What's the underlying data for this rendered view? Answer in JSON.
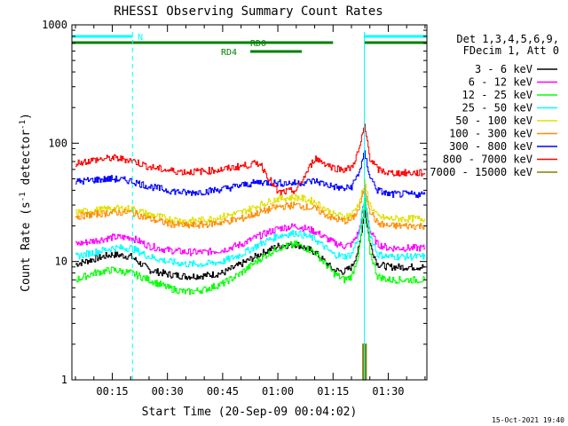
{
  "chart_data": {
    "type": "line",
    "title": "RHESSI Observing Summary Count Rates",
    "xlabel": "Start Time (20-Sep-09 00:04:02)",
    "ylabel": {
      "base": "Count Rate (s",
      "sup1": "-1",
      "mid": " detector",
      "sup2": "-1",
      "end": ")"
    },
    "x_tick_labels": [
      "00:15",
      "00:30",
      "00:45",
      "01:00",
      "01:15",
      "01:30"
    ],
    "x_tick_minutes": [
      15,
      30,
      45,
      60,
      75,
      90
    ],
    "xlim_minutes": [
      4.03,
      100.5
    ],
    "y_scale": "log",
    "ylim": [
      1,
      1000
    ],
    "y_tick_labels": [
      "1",
      "10",
      "100",
      "1000"
    ],
    "y_tick_values": [
      1,
      10,
      100,
      1000
    ],
    "grid": false,
    "legend_placement": "right",
    "detector_info": [
      "Det 1,3,4,5,6,9,",
      "FDecim 1, Att 0"
    ],
    "legend_entries": [
      {
        "label": "3 - 6 keV",
        "color": "#000000"
      },
      {
        "label": "6 - 12 keV",
        "color": "#ff00ff"
      },
      {
        "label": "12 - 25 keV",
        "color": "#00ff00"
      },
      {
        "label": "25 - 50 keV",
        "color": "#00ffff"
      },
      {
        "label": "50 - 100 keV",
        "color": "#e0e000"
      },
      {
        "label": "100 - 300 keV",
        "color": "#ff8c00"
      },
      {
        "label": "300 - 800 keV",
        "color": "#0000ff"
      },
      {
        "label": "800 - 7000 keV",
        "color": "#ff0000"
      },
      {
        "label": "7000 - 15000 keV",
        "color": "#808000"
      }
    ],
    "flags": [
      {
        "label": "N",
        "color": "#00ffff",
        "segments": [
          [
            4.03,
            20.5
          ],
          [
            83.5,
            100.5
          ]
        ]
      },
      {
        "label": "RD0",
        "color": "#008000",
        "segments": [
          [
            4.03,
            75.0
          ],
          [
            83.5,
            100.5
          ]
        ]
      },
      {
        "label": "RD4",
        "color": "#008000",
        "segments": [
          [
            52.5,
            66.5
          ]
        ]
      }
    ],
    "night_boundaries_minutes": [
      4.03,
      20.5,
      83.5,
      100.5
    ],
    "series": [
      {
        "color": "#000000",
        "x": [
          5,
          10,
          15,
          20,
          25,
          30,
          35,
          40,
          45,
          50,
          55,
          60,
          65,
          70,
          75,
          78,
          80,
          82,
          83.5,
          85,
          87,
          90,
          95,
          100
        ],
        "values": [
          9.5,
          10.5,
          11.5,
          11,
          8.5,
          7.8,
          7.5,
          7.6,
          8,
          9.5,
          11.5,
          13.5,
          14,
          12,
          8.5,
          8.2,
          9,
          13,
          27,
          14,
          9.5,
          9,
          9,
          9
        ]
      },
      {
        "color": "#ff00ff",
        "x": [
          5,
          10,
          15,
          20,
          25,
          30,
          35,
          40,
          45,
          50,
          55,
          60,
          65,
          70,
          75,
          78,
          80,
          82,
          83.5,
          85,
          87,
          90,
          95,
          100
        ],
        "values": [
          14,
          15,
          16,
          16,
          13.5,
          12.5,
          12,
          12,
          12.5,
          14,
          16.5,
          19,
          20,
          18,
          14.5,
          13.5,
          14,
          18,
          34,
          18,
          14,
          13,
          13,
          13
        ]
      },
      {
        "color": "#00ff00",
        "x": [
          5,
          10,
          15,
          20,
          25,
          30,
          35,
          40,
          45,
          50,
          55,
          60,
          65,
          70,
          75,
          78,
          80,
          82,
          83.5,
          85,
          87,
          90,
          95,
          100
        ],
        "values": [
          7,
          8,
          8.5,
          8,
          7,
          6,
          5.5,
          5.8,
          6.5,
          8,
          10.5,
          13,
          14,
          12,
          8,
          7,
          7.5,
          12,
          32,
          12,
          7.5,
          7,
          7,
          7
        ]
      },
      {
        "color": "#00ffff",
        "x": [
          5,
          10,
          15,
          20,
          25,
          30,
          35,
          40,
          45,
          50,
          55,
          60,
          65,
          70,
          75,
          78,
          80,
          82,
          83.5,
          85,
          87,
          90,
          95,
          100
        ],
        "values": [
          11,
          12,
          13,
          13,
          11,
          10,
          9.5,
          9.5,
          10,
          11.5,
          14,
          16.5,
          17.5,
          15.5,
          11.5,
          11,
          11.5,
          17,
          37,
          17,
          11.5,
          11,
          11,
          11
        ]
      },
      {
        "color": "#e0e000",
        "x": [
          5,
          10,
          15,
          20,
          25,
          30,
          35,
          40,
          45,
          50,
          55,
          60,
          65,
          70,
          75,
          78,
          80,
          82,
          83.5,
          85,
          87,
          90,
          95,
          100
        ],
        "values": [
          26,
          27,
          28,
          28,
          25,
          23,
          22,
          22.5,
          24,
          26,
          30,
          34,
          35,
          32,
          25,
          24,
          25,
          31,
          46,
          30,
          24,
          23,
          23,
          23
        ]
      },
      {
        "color": "#ff8c00",
        "x": [
          5,
          10,
          15,
          20,
          25,
          30,
          35,
          40,
          45,
          50,
          55,
          60,
          65,
          70,
          75,
          78,
          80,
          82,
          83.5,
          85,
          87,
          90,
          95,
          100
        ],
        "values": [
          24,
          25,
          26,
          26,
          23,
          21,
          20,
          20.5,
          21.5,
          23,
          26,
          29,
          30,
          28,
          23,
          22,
          22.5,
          28,
          42,
          27,
          21,
          20,
          20,
          20
        ]
      },
      {
        "color": "#0000ff",
        "x": [
          5,
          10,
          15,
          20,
          25,
          30,
          35,
          40,
          45,
          50,
          55,
          60,
          65,
          70,
          75,
          78,
          80,
          82,
          83.5,
          85,
          87,
          90,
          95,
          100
        ],
        "values": [
          47,
          49,
          50,
          48,
          43,
          40,
          38,
          39,
          41,
          44,
          47,
          46,
          46,
          48,
          43,
          41,
          43,
          57,
          82,
          52,
          40,
          37,
          37,
          37
        ]
      },
      {
        "color": "#ff0000",
        "x": [
          5,
          10,
          15,
          20,
          25,
          30,
          35,
          40,
          45,
          50,
          55,
          60,
          65,
          70,
          75,
          78,
          80,
          82,
          83.5,
          85,
          87,
          90,
          95,
          100
        ],
        "values": [
          68,
          72,
          75,
          72,
          63,
          59,
          57,
          58,
          60,
          64,
          68,
          38,
          40,
          75,
          62,
          60,
          62,
          88,
          140,
          75,
          60,
          56,
          56,
          56
        ]
      },
      {
        "color": "#808000",
        "x": [
          83.1,
          83.1,
          83.4,
          83.4,
          83.7,
          83.7,
          84.0,
          84.0
        ],
        "values": [
          1,
          2,
          2,
          1,
          1,
          2,
          2,
          1
        ]
      }
    ]
  },
  "footer": {
    "timestamp": "15-Oct-2021 19:40"
  }
}
